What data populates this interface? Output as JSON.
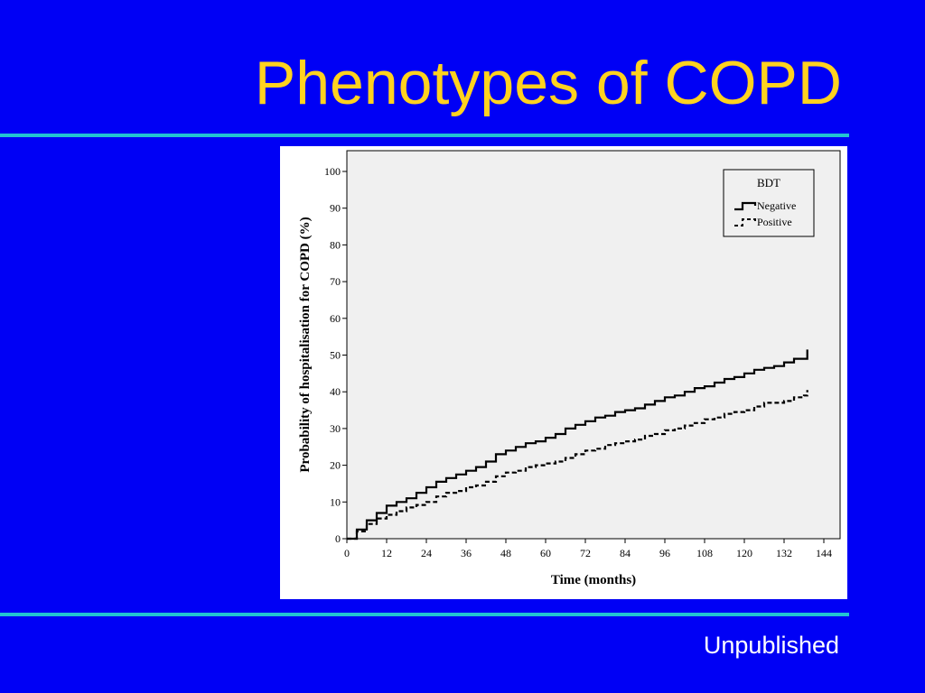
{
  "slide": {
    "title": "Phenotypes of COPD",
    "footer": "Unpublished"
  },
  "colors": {
    "background": "#0000f5",
    "title": "#ffd21f",
    "rule": "#22c3d2",
    "plot_area": "#f0f0f0",
    "lines": "#000000"
  },
  "chart_data": {
    "type": "line",
    "title": "",
    "xlabel": "Time (months)",
    "ylabel": "Probability of hospitalisation for COPD (%)",
    "xlim": [
      0,
      144
    ],
    "ylim": [
      0,
      100
    ],
    "xticks": [
      0,
      12,
      24,
      36,
      48,
      60,
      72,
      84,
      96,
      108,
      120,
      132,
      144
    ],
    "yticks": [
      0,
      10,
      20,
      30,
      40,
      50,
      60,
      70,
      80,
      90,
      100
    ],
    "grid": false,
    "step": true,
    "legend": {
      "title": "BDT",
      "placement": "top-right",
      "entries": [
        "Negative",
        "Positive"
      ]
    },
    "series": [
      {
        "name": "Negative",
        "style": "solid",
        "x": [
          0,
          3,
          6,
          9,
          12,
          15,
          18,
          21,
          24,
          27,
          30,
          33,
          36,
          39,
          42,
          45,
          48,
          51,
          54,
          57,
          60,
          63,
          66,
          69,
          72,
          75,
          78,
          81,
          84,
          87,
          90,
          93,
          96,
          99,
          102,
          105,
          108,
          111,
          114,
          117,
          120,
          123,
          126,
          129,
          132,
          135,
          138,
          139
        ],
        "y": [
          0,
          2.5,
          5,
          7,
          9,
          10,
          11,
          12.5,
          14,
          15.5,
          16.5,
          17.5,
          18.5,
          19.5,
          21,
          23,
          24,
          25,
          26,
          26.5,
          27.5,
          28.5,
          30,
          31,
          32,
          33,
          33.5,
          34.5,
          35,
          35.5,
          36.5,
          37.5,
          38.5,
          39,
          40,
          41,
          41.5,
          42.5,
          43.5,
          44,
          45,
          46,
          46.5,
          47,
          48,
          49,
          49,
          51.5
        ]
      },
      {
        "name": "Positive",
        "style": "dashed",
        "x": [
          0,
          3,
          6,
          9,
          12,
          15,
          18,
          21,
          24,
          27,
          30,
          33,
          36,
          39,
          42,
          45,
          48,
          51,
          54,
          57,
          60,
          63,
          66,
          69,
          72,
          75,
          78,
          81,
          84,
          87,
          90,
          93,
          96,
          99,
          102,
          105,
          108,
          111,
          114,
          117,
          120,
          123,
          126,
          129,
          132,
          135,
          138,
          139
        ],
        "y": [
          0,
          2,
          4,
          5.5,
          6.5,
          7.5,
          8.5,
          9.2,
          10,
          11.5,
          12.5,
          13,
          14,
          14.5,
          15.5,
          17,
          18,
          18.5,
          19.5,
          20,
          20.5,
          21,
          22,
          23,
          24,
          24.5,
          25.5,
          26,
          26.5,
          27,
          28,
          28.5,
          29.5,
          30,
          30.8,
          31.5,
          32.5,
          33,
          34,
          34.5,
          35,
          36,
          37,
          37,
          37.5,
          38.5,
          39,
          40.5
        ]
      }
    ]
  }
}
